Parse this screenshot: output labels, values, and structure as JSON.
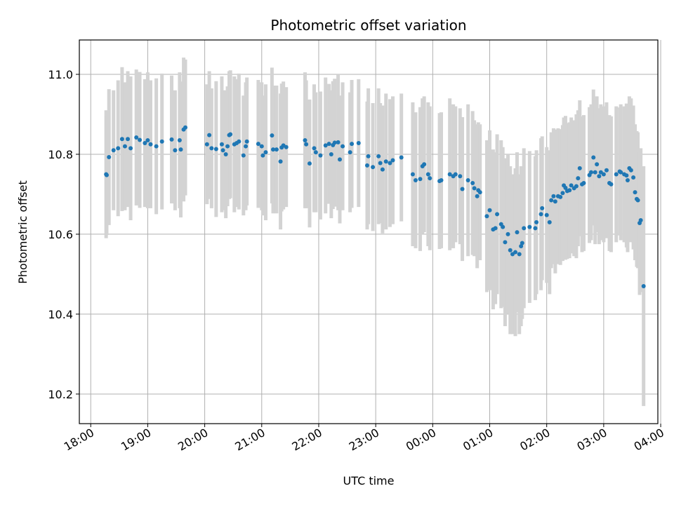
{
  "chart_data": {
    "type": "scatter",
    "title": "Photometric offset variation",
    "xlabel": "UTC time",
    "ylabel": "Photometric offset",
    "x_unit": "hours since 18:00 UTC",
    "xlim": [
      -0.2,
      9.95
    ],
    "ylim": [
      10.126,
      11.086
    ],
    "xticks": [
      {
        "value": 0,
        "label": "18:00"
      },
      {
        "value": 1,
        "label": "19:00"
      },
      {
        "value": 2,
        "label": "20:00"
      },
      {
        "value": 3,
        "label": "21:00"
      },
      {
        "value": 4,
        "label": "22:00"
      },
      {
        "value": 5,
        "label": "23:00"
      },
      {
        "value": 6,
        "label": "00:00"
      },
      {
        "value": 7,
        "label": "01:00"
      },
      {
        "value": 8,
        "label": "02:00"
      },
      {
        "value": 9,
        "label": "03:00"
      },
      {
        "value": 10,
        "label": "04:00"
      }
    ],
    "yticks": [
      {
        "value": 10.2,
        "label": "10.2"
      },
      {
        "value": 10.4,
        "label": "10.4"
      },
      {
        "value": 10.6,
        "label": "10.6"
      },
      {
        "value": 10.8,
        "label": "10.8"
      },
      {
        "value": 11.0,
        "label": "11.0"
      }
    ],
    "grid": true,
    "point_color": "#1f77b4",
    "errorbar_color": "#d3d3d3",
    "points": [
      [
        0.27,
        10.75,
        0.16
      ],
      [
        0.28,
        10.748,
        0.15
      ],
      [
        0.32,
        10.793,
        0.17
      ],
      [
        0.4,
        10.81,
        0.15
      ],
      [
        0.48,
        10.815,
        0.17
      ],
      [
        0.55,
        10.838,
        0.18
      ],
      [
        0.6,
        10.82,
        0.16
      ],
      [
        0.65,
        10.838,
        0.17
      ],
      [
        0.7,
        10.815,
        0.18
      ],
      [
        0.8,
        10.842,
        0.17
      ],
      [
        0.86,
        10.836,
        0.17
      ],
      [
        0.95,
        10.828,
        0.16
      ],
      [
        1.0,
        10.835,
        0.17
      ],
      [
        1.05,
        10.825,
        0.16
      ],
      [
        1.15,
        10.82,
        0.17
      ],
      [
        1.25,
        10.832,
        0.17
      ],
      [
        1.42,
        10.837,
        0.16
      ],
      [
        1.48,
        10.81,
        0.15
      ],
      [
        1.56,
        10.835,
        0.17
      ],
      [
        1.58,
        10.812,
        0.17
      ],
      [
        1.63,
        10.862,
        0.18
      ],
      [
        1.66,
        10.867,
        0.17
      ],
      [
        2.04,
        10.825,
        0.15
      ],
      [
        2.08,
        10.848,
        0.16
      ],
      [
        2.12,
        10.815,
        0.15
      ],
      [
        2.2,
        10.813,
        0.17
      ],
      [
        2.3,
        10.825,
        0.17
      ],
      [
        2.32,
        10.81,
        0.15
      ],
      [
        2.37,
        10.8,
        0.16
      ],
      [
        2.4,
        10.82,
        0.15
      ],
      [
        2.43,
        10.848,
        0.16
      ],
      [
        2.45,
        10.85,
        0.16
      ],
      [
        2.52,
        10.825,
        0.17
      ],
      [
        2.56,
        10.828,
        0.16
      ],
      [
        2.6,
        10.832,
        0.17
      ],
      [
        2.68,
        10.797,
        0.15
      ],
      [
        2.72,
        10.82,
        0.16
      ],
      [
        2.74,
        10.832,
        0.16
      ],
      [
        2.94,
        10.826,
        0.16
      ],
      [
        3.0,
        10.82,
        0.16
      ],
      [
        3.02,
        10.797,
        0.15
      ],
      [
        3.07,
        10.805,
        0.17
      ],
      [
        3.18,
        10.847,
        0.17
      ],
      [
        3.2,
        10.812,
        0.16
      ],
      [
        3.26,
        10.812,
        0.16
      ],
      [
        3.33,
        10.782,
        0.17
      ],
      [
        3.35,
        10.817,
        0.16
      ],
      [
        3.38,
        10.822,
        0.16
      ],
      [
        3.43,
        10.818,
        0.15
      ],
      [
        3.76,
        10.835,
        0.17
      ],
      [
        3.78,
        10.825,
        0.16
      ],
      [
        3.84,
        10.777,
        0.16
      ],
      [
        3.92,
        10.815,
        0.16
      ],
      [
        3.95,
        10.805,
        0.15
      ],
      [
        4.03,
        10.797,
        0.16
      ],
      [
        4.12,
        10.822,
        0.17
      ],
      [
        4.18,
        10.826,
        0.15
      ],
      [
        4.22,
        10.8,
        0.16
      ],
      [
        4.25,
        10.823,
        0.16
      ],
      [
        4.28,
        10.829,
        0.16
      ],
      [
        4.34,
        10.83,
        0.17
      ],
      [
        4.37,
        10.787,
        0.16
      ],
      [
        4.42,
        10.82,
        0.16
      ],
      [
        4.55,
        10.805,
        0.15
      ],
      [
        4.58,
        10.826,
        0.16
      ],
      [
        4.7,
        10.828,
        0.16
      ],
      [
        4.85,
        10.772,
        0.16
      ],
      [
        4.87,
        10.795,
        0.17
      ],
      [
        4.95,
        10.768,
        0.16
      ],
      [
        5.05,
        10.795,
        0.17
      ],
      [
        5.08,
        10.778,
        0.15
      ],
      [
        5.12,
        10.762,
        0.16
      ],
      [
        5.18,
        10.782,
        0.17
      ],
      [
        5.25,
        10.778,
        0.16
      ],
      [
        5.3,
        10.785,
        0.16
      ],
      [
        5.45,
        10.792,
        0.16
      ],
      [
        5.65,
        10.75,
        0.18
      ],
      [
        5.7,
        10.735,
        0.17
      ],
      [
        5.78,
        10.738,
        0.18
      ],
      [
        5.82,
        10.77,
        0.17
      ],
      [
        5.85,
        10.775,
        0.17
      ],
      [
        5.92,
        10.75,
        0.18
      ],
      [
        5.95,
        10.74,
        0.18
      ],
      [
        6.12,
        10.733,
        0.17
      ],
      [
        6.15,
        10.735,
        0.17
      ],
      [
        6.3,
        10.75,
        0.19
      ],
      [
        6.36,
        10.745,
        0.18
      ],
      [
        6.4,
        10.75,
        0.17
      ],
      [
        6.48,
        10.745,
        0.17
      ],
      [
        6.52,
        10.713,
        0.18
      ],
      [
        6.62,
        10.735,
        0.19
      ],
      [
        6.7,
        10.728,
        0.18
      ],
      [
        6.73,
        10.715,
        0.17
      ],
      [
        6.78,
        10.695,
        0.18
      ],
      [
        6.8,
        10.71,
        0.17
      ],
      [
        6.83,
        10.705,
        0.17
      ],
      [
        6.95,
        10.645,
        0.19
      ],
      [
        7.0,
        10.66,
        0.2
      ],
      [
        7.06,
        10.612,
        0.2
      ],
      [
        7.1,
        10.615,
        0.19
      ],
      [
        7.13,
        10.65,
        0.2
      ],
      [
        7.2,
        10.625,
        0.21
      ],
      [
        7.23,
        10.618,
        0.2
      ],
      [
        7.27,
        10.58,
        0.21
      ],
      [
        7.32,
        10.6,
        0.2
      ],
      [
        7.36,
        10.56,
        0.21
      ],
      [
        7.4,
        10.55,
        0.2
      ],
      [
        7.45,
        10.555,
        0.21
      ],
      [
        7.48,
        10.605,
        0.2
      ],
      [
        7.52,
        10.55,
        0.2
      ],
      [
        7.55,
        10.57,
        0.2
      ],
      [
        7.57,
        10.578,
        0.19
      ],
      [
        7.6,
        10.615,
        0.2
      ],
      [
        7.7,
        10.618,
        0.19
      ],
      [
        7.8,
        10.615,
        0.18
      ],
      [
        7.82,
        10.63,
        0.18
      ],
      [
        7.9,
        10.65,
        0.19
      ],
      [
        7.92,
        10.665,
        0.18
      ],
      [
        8.0,
        10.648,
        0.17
      ],
      [
        8.05,
        10.63,
        0.18
      ],
      [
        8.08,
        10.685,
        0.17
      ],
      [
        8.12,
        10.695,
        0.17
      ],
      [
        8.15,
        10.682,
        0.18
      ],
      [
        8.2,
        10.695,
        0.17
      ],
      [
        8.24,
        10.693,
        0.17
      ],
      [
        8.28,
        10.703,
        0.17
      ],
      [
        8.3,
        10.722,
        0.17
      ],
      [
        8.33,
        10.716,
        0.18
      ],
      [
        8.36,
        10.708,
        0.17
      ],
      [
        8.4,
        10.71,
        0.17
      ],
      [
        8.43,
        10.722,
        0.17
      ],
      [
        8.48,
        10.715,
        0.17
      ],
      [
        8.52,
        10.72,
        0.18
      ],
      [
        8.55,
        10.74,
        0.17
      ],
      [
        8.58,
        10.765,
        0.17
      ],
      [
        8.62,
        10.725,
        0.17
      ],
      [
        8.65,
        10.728,
        0.17
      ],
      [
        8.75,
        10.748,
        0.17
      ],
      [
        8.78,
        10.755,
        0.17
      ],
      [
        8.82,
        10.792,
        0.17
      ],
      [
        8.85,
        10.755,
        0.18
      ],
      [
        8.88,
        10.775,
        0.17
      ],
      [
        8.92,
        10.745,
        0.17
      ],
      [
        8.95,
        10.755,
        0.17
      ],
      [
        9.0,
        10.75,
        0.17
      ],
      [
        9.05,
        10.76,
        0.17
      ],
      [
        9.1,
        10.728,
        0.17
      ],
      [
        9.13,
        10.725,
        0.17
      ],
      [
        9.22,
        10.75,
        0.17
      ],
      [
        9.28,
        10.757,
        0.16
      ],
      [
        9.3,
        10.755,
        0.17
      ],
      [
        9.36,
        10.75,
        0.17
      ],
      [
        9.4,
        10.747,
        0.18
      ],
      [
        9.42,
        10.735,
        0.18
      ],
      [
        9.45,
        10.765,
        0.18
      ],
      [
        9.48,
        10.76,
        0.18
      ],
      [
        9.52,
        10.742,
        0.18
      ],
      [
        9.55,
        10.705,
        0.17
      ],
      [
        9.58,
        10.688,
        0.17
      ],
      [
        9.6,
        10.685,
        0.17
      ],
      [
        9.63,
        10.628,
        0.18
      ],
      [
        9.65,
        10.635,
        0.18
      ],
      [
        9.7,
        10.47,
        0.3
      ]
    ]
  }
}
